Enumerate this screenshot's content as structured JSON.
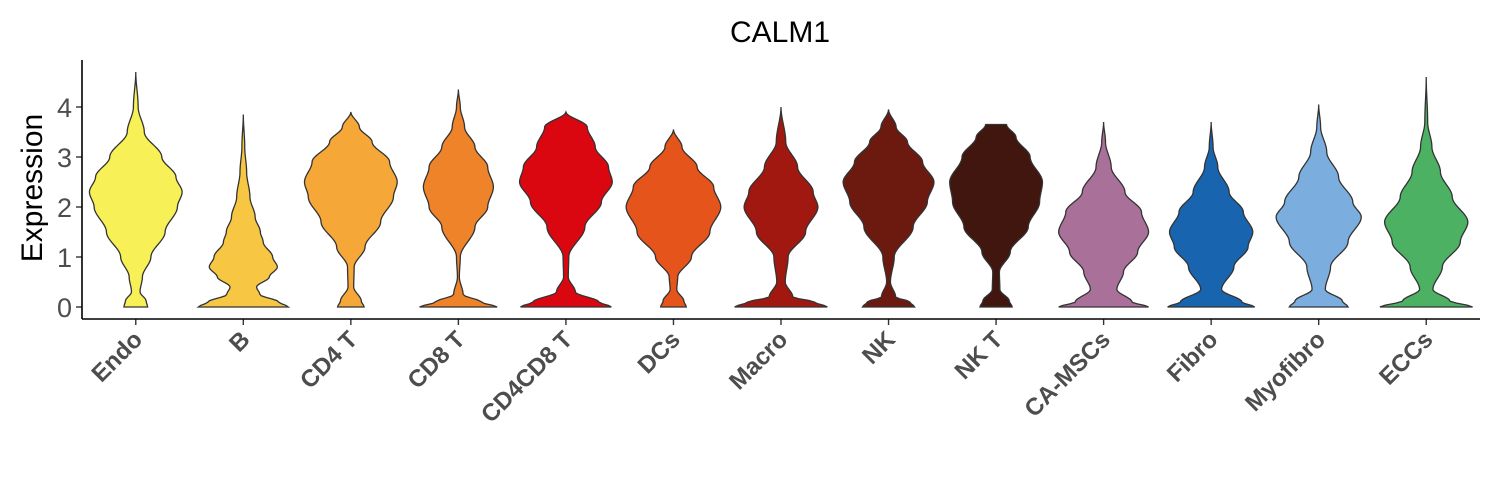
{
  "chart_data": {
    "type": "violin",
    "title": "CALM1",
    "xlabel": "",
    "ylabel": "Expression",
    "ylim": [
      -0.25,
      4.9
    ],
    "yticks": [
      0,
      1,
      2,
      3,
      4
    ],
    "grid": false,
    "legend": "none",
    "categories": [
      "Endo",
      "B",
      "CD4 T",
      "CD8 T",
      "CD4CD8 T",
      "DCs",
      "Macro",
      "NK",
      "NK T",
      "CA-MSCs",
      "Fibro",
      "Myofibro",
      "ECCs"
    ],
    "series": [
      {
        "name": "Endo",
        "color": "#F7F056",
        "max": 4.7,
        "density": [
          [
            0,
            0.25
          ],
          [
            0.12,
            0.22
          ],
          [
            0.3,
            0.09
          ],
          [
            0.6,
            0.14
          ],
          [
            1.0,
            0.32
          ],
          [
            1.5,
            0.62
          ],
          [
            2.0,
            0.88
          ],
          [
            2.3,
            0.98
          ],
          [
            2.6,
            0.85
          ],
          [
            3.0,
            0.55
          ],
          [
            3.5,
            0.18
          ],
          [
            4.0,
            0.05
          ],
          [
            4.7,
            0.0
          ]
        ]
      },
      {
        "name": "B",
        "color": "#F7C744",
        "max": 3.85,
        "density": [
          [
            0,
            0.95
          ],
          [
            0.1,
            0.75
          ],
          [
            0.25,
            0.35
          ],
          [
            0.4,
            0.28
          ],
          [
            0.6,
            0.55
          ],
          [
            0.8,
            0.72
          ],
          [
            1.0,
            0.62
          ],
          [
            1.3,
            0.42
          ],
          [
            1.5,
            0.36
          ],
          [
            1.8,
            0.25
          ],
          [
            2.2,
            0.14
          ],
          [
            2.7,
            0.07
          ],
          [
            3.2,
            0.03
          ],
          [
            3.85,
            0.0
          ]
        ]
      },
      {
        "name": "CD4 T",
        "color": "#F5A737",
        "max": 3.9,
        "density": [
          [
            0,
            0.28
          ],
          [
            0.12,
            0.22
          ],
          [
            0.4,
            0.06
          ],
          [
            0.8,
            0.07
          ],
          [
            1.2,
            0.3
          ],
          [
            1.7,
            0.63
          ],
          [
            2.2,
            0.9
          ],
          [
            2.5,
            0.98
          ],
          [
            2.9,
            0.82
          ],
          [
            3.3,
            0.45
          ],
          [
            3.6,
            0.18
          ],
          [
            3.9,
            0.0
          ]
        ]
      },
      {
        "name": "CD8 T",
        "color": "#EF8329",
        "max": 4.35,
        "density": [
          [
            0,
            0.82
          ],
          [
            0.1,
            0.48
          ],
          [
            0.25,
            0.1
          ],
          [
            0.6,
            0.02
          ],
          [
            1.0,
            0.04
          ],
          [
            1.6,
            0.35
          ],
          [
            2.0,
            0.62
          ],
          [
            2.4,
            0.74
          ],
          [
            2.8,
            0.62
          ],
          [
            3.2,
            0.35
          ],
          [
            3.6,
            0.13
          ],
          [
            4.0,
            0.04
          ],
          [
            4.35,
            0.0
          ]
        ]
      },
      {
        "name": "CD4CD8 T",
        "color": "#DB0710",
        "max": 3.9,
        "density": [
          [
            0,
            0.96
          ],
          [
            0.1,
            0.7
          ],
          [
            0.3,
            0.2
          ],
          [
            0.6,
            0.05
          ],
          [
            1.0,
            0.06
          ],
          [
            1.6,
            0.4
          ],
          [
            2.1,
            0.75
          ],
          [
            2.5,
            0.98
          ],
          [
            2.8,
            0.9
          ],
          [
            3.2,
            0.62
          ],
          [
            3.6,
            0.45
          ],
          [
            3.9,
            0.0
          ]
        ]
      },
      {
        "name": "DCs",
        "color": "#E5541A",
        "max": 3.55,
        "density": [
          [
            0,
            0.27
          ],
          [
            0.12,
            0.22
          ],
          [
            0.35,
            0.07
          ],
          [
            0.6,
            0.09
          ],
          [
            1.0,
            0.38
          ],
          [
            1.5,
            0.77
          ],
          [
            2.0,
            1.0
          ],
          [
            2.4,
            0.85
          ],
          [
            2.8,
            0.5
          ],
          [
            3.2,
            0.18
          ],
          [
            3.55,
            0.0
          ]
        ]
      },
      {
        "name": "Macro",
        "color": "#A01810",
        "max": 4.0,
        "density": [
          [
            0,
            0.98
          ],
          [
            0.1,
            0.7
          ],
          [
            0.2,
            0.25
          ],
          [
            0.5,
            0.09
          ],
          [
            1.0,
            0.15
          ],
          [
            1.5,
            0.52
          ],
          [
            2.0,
            0.78
          ],
          [
            2.3,
            0.68
          ],
          [
            2.8,
            0.35
          ],
          [
            3.3,
            0.1
          ],
          [
            4.0,
            0.0
          ]
        ]
      },
      {
        "name": "NK",
        "color": "#6C1A10",
        "max": 3.95,
        "density": [
          [
            0,
            0.55
          ],
          [
            0.1,
            0.45
          ],
          [
            0.2,
            0.15
          ],
          [
            0.5,
            0.04
          ],
          [
            1.0,
            0.12
          ],
          [
            1.6,
            0.52
          ],
          [
            2.1,
            0.82
          ],
          [
            2.5,
            0.96
          ],
          [
            2.9,
            0.72
          ],
          [
            3.3,
            0.4
          ],
          [
            3.6,
            0.16
          ],
          [
            3.95,
            0.0
          ]
        ]
      },
      {
        "name": "NK T",
        "color": "#40160E",
        "max": 3.65,
        "density": [
          [
            0,
            0.34
          ],
          [
            0.12,
            0.28
          ],
          [
            0.35,
            0.08
          ],
          [
            0.7,
            0.07
          ],
          [
            1.1,
            0.3
          ],
          [
            1.6,
            0.68
          ],
          [
            2.1,
            0.92
          ],
          [
            2.5,
            0.98
          ],
          [
            3.0,
            0.72
          ],
          [
            3.4,
            0.42
          ],
          [
            3.65,
            0.22
          ],
          [
            3.651,
            0.0
          ]
        ]
      },
      {
        "name": "CA-MSCs",
        "color": "#A97099",
        "max": 3.7,
        "density": [
          [
            0,
            0.95
          ],
          [
            0.1,
            0.6
          ],
          [
            0.35,
            0.28
          ],
          [
            0.7,
            0.42
          ],
          [
            1.1,
            0.72
          ],
          [
            1.5,
            0.95
          ],
          [
            1.9,
            0.8
          ],
          [
            2.3,
            0.45
          ],
          [
            2.8,
            0.16
          ],
          [
            3.3,
            0.04
          ],
          [
            3.7,
            0.0
          ]
        ]
      },
      {
        "name": "Fibro",
        "color": "#1964AE",
        "max": 3.7,
        "density": [
          [
            0,
            0.92
          ],
          [
            0.1,
            0.65
          ],
          [
            0.35,
            0.22
          ],
          [
            0.8,
            0.48
          ],
          [
            1.2,
            0.78
          ],
          [
            1.5,
            0.88
          ],
          [
            1.9,
            0.68
          ],
          [
            2.3,
            0.38
          ],
          [
            2.8,
            0.14
          ],
          [
            3.2,
            0.04
          ],
          [
            3.7,
            0.0
          ]
        ]
      },
      {
        "name": "Myofibro",
        "color": "#7BAEDE",
        "max": 4.05,
        "density": [
          [
            0,
            0.62
          ],
          [
            0.12,
            0.5
          ],
          [
            0.35,
            0.14
          ],
          [
            0.8,
            0.25
          ],
          [
            1.3,
            0.62
          ],
          [
            1.8,
            0.9
          ],
          [
            2.1,
            0.72
          ],
          [
            2.6,
            0.42
          ],
          [
            3.1,
            0.17
          ],
          [
            3.6,
            0.04
          ],
          [
            4.05,
            0.0
          ]
        ]
      },
      {
        "name": "ECCs",
        "color": "#4DB164",
        "max": 4.6,
        "density": [
          [
            0,
            0.98
          ],
          [
            0.12,
            0.5
          ],
          [
            0.35,
            0.14
          ],
          [
            0.8,
            0.34
          ],
          [
            1.3,
            0.72
          ],
          [
            1.7,
            0.88
          ],
          [
            2.2,
            0.55
          ],
          [
            2.7,
            0.3
          ],
          [
            3.2,
            0.12
          ],
          [
            3.7,
            0.03
          ],
          [
            4.6,
            0.0
          ]
        ]
      }
    ]
  }
}
